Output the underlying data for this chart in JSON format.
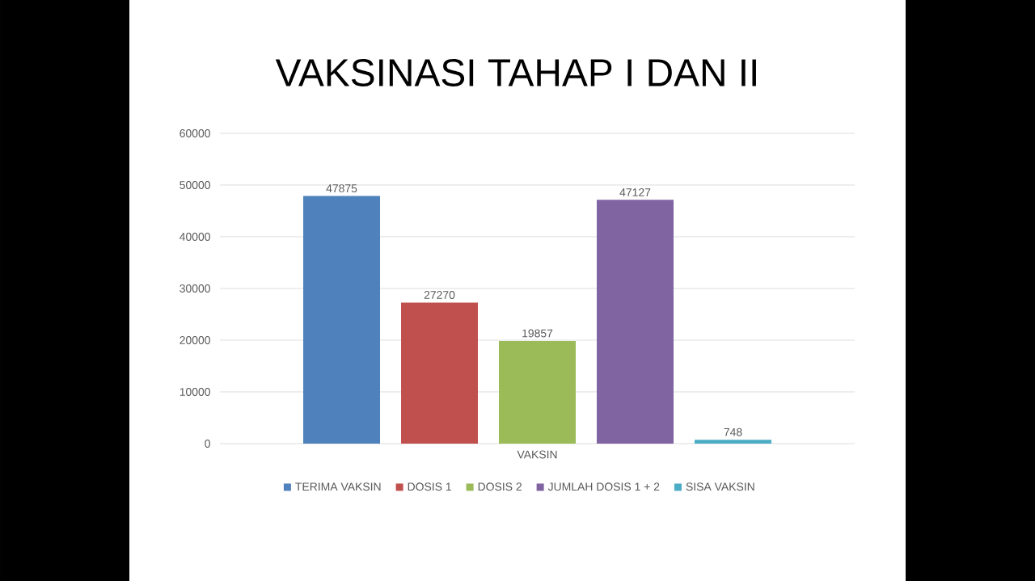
{
  "chart_data": {
    "type": "bar",
    "title": "VAKSINASI TAHAP I DAN II",
    "categories": [
      "VAKSIN"
    ],
    "series": [
      {
        "name": "TERIMA VAKSIN",
        "color": "#4f81bd",
        "values": [
          47875
        ]
      },
      {
        "name": "DOSIS 1",
        "color": "#c0504d",
        "values": [
          27270
        ]
      },
      {
        "name": "DOSIS 2",
        "color": "#9bbb59",
        "values": [
          19857
        ]
      },
      {
        "name": "JUMLAH DOSIS 1 + 2",
        "color": "#8064a2",
        "values": [
          47127
        ]
      },
      {
        "name": "SISA VAKSIN",
        "color": "#4bacc6",
        "values": [
          748
        ]
      }
    ],
    "ylim": [
      0,
      60000
    ],
    "yticks": [
      0,
      10000,
      20000,
      30000,
      40000,
      50000,
      60000
    ],
    "grid": "y",
    "legend": "bottom",
    "data_labels": true
  }
}
